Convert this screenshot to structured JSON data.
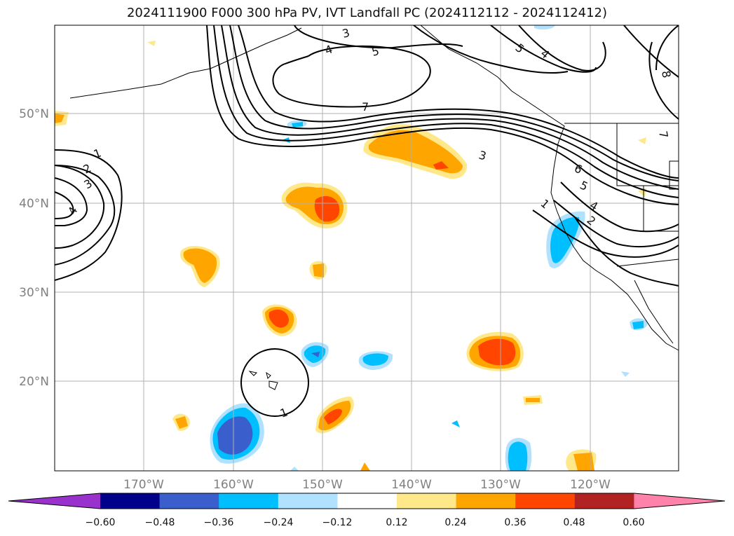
{
  "title": "2024111900 F000 300 hPa PV, IVT Landfall PC (2024112112 - 2024112412)",
  "map": {
    "lon_labels": [
      "170°W",
      "160°W",
      "150°W",
      "140°W",
      "130°W",
      "120°W"
    ],
    "lat_labels": [
      "50°N",
      "40°N",
      "30°N",
      "20°N"
    ],
    "contour_labels": [
      "3",
      "4",
      "5",
      "7",
      "5",
      "4",
      "8",
      "7",
      "1",
      "2",
      "3",
      "4",
      "3",
      "6",
      "5",
      "4",
      "1",
      "2",
      "1"
    ]
  },
  "colorbar": {
    "tick_labels": [
      "−0.60",
      "−0.48",
      "−0.36",
      "−0.24",
      "−0.12",
      "0.12",
      "0.24",
      "0.36",
      "0.48",
      "0.60"
    ],
    "colors": [
      "#9932cc",
      "#00008b",
      "#3a5fcd",
      "#00bfff",
      "#b0e2ff",
      "#ffffff",
      "#ffe88a",
      "#ffa500",
      "#ff4500",
      "#b22222",
      "#ff82ab"
    ]
  }
}
